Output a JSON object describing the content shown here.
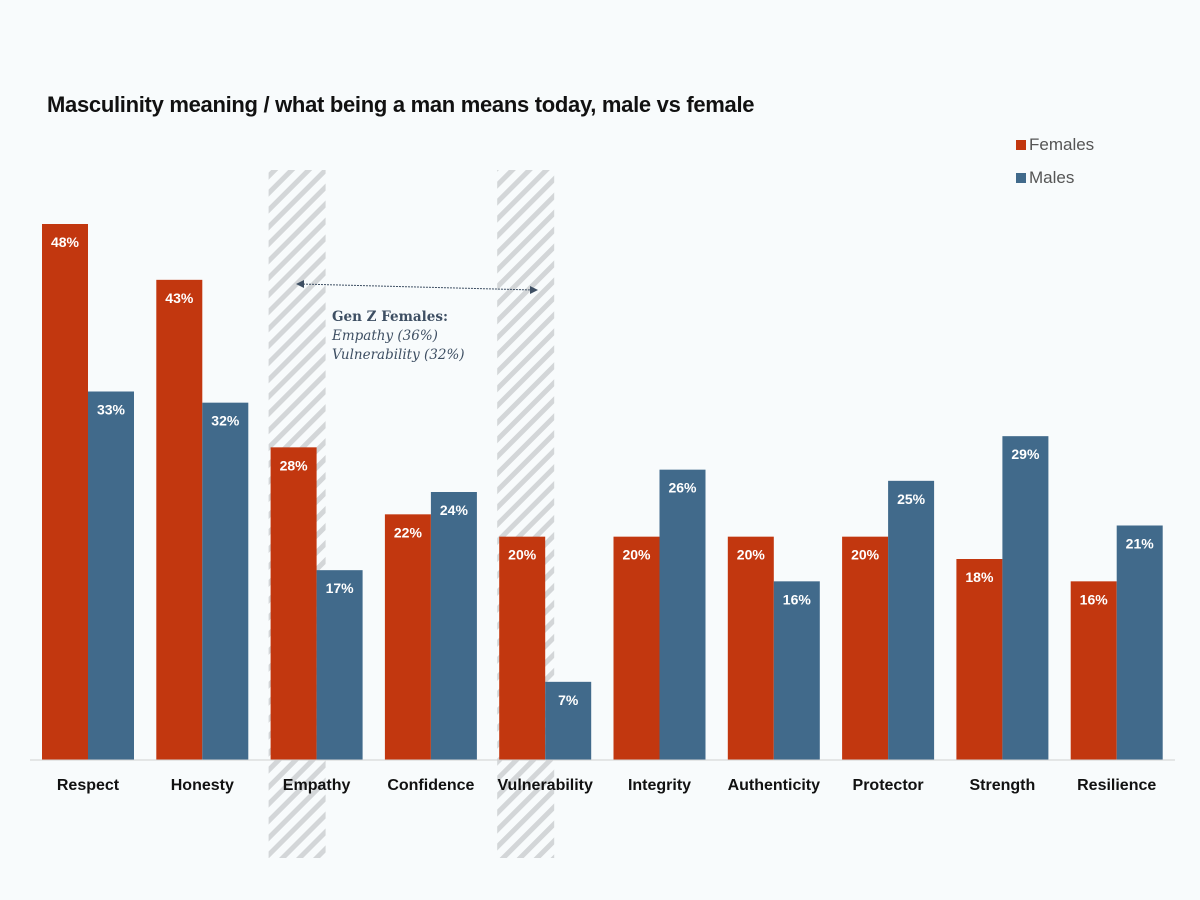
{
  "title": "Masculinity meaning / what being a man means today, male vs female",
  "legend": [
    {
      "label": "Females",
      "color": "#c2370f"
    },
    {
      "label": "Males",
      "color": "#416a8b"
    }
  ],
  "annotation": {
    "heading": "Gen Z Females:",
    "lines": [
      "Empathy (36%)",
      "Vulnerability (32%)"
    ],
    "highlighted_categories": [
      "Empathy",
      "Vulnerability"
    ]
  },
  "chart_data": {
    "type": "bar",
    "title": "Masculinity meaning / what being a man means today, male vs female",
    "xlabel": "",
    "ylabel": "",
    "ylim": [
      0,
      50
    ],
    "grid": false,
    "legend_position": "top-right",
    "value_format": "percent",
    "categories": [
      "Respect",
      "Honesty",
      "Empathy",
      "Confidence",
      "Vulnerability",
      "Integrity",
      "Authenticity",
      "Protector",
      "Strength",
      "Resilience"
    ],
    "series": [
      {
        "name": "Females",
        "color": "#c2370f",
        "values": [
          48,
          43,
          28,
          22,
          20,
          20,
          20,
          20,
          18,
          16
        ]
      },
      {
        "name": "Males",
        "color": "#416a8b",
        "values": [
          33,
          32,
          17,
          24,
          7,
          26,
          16,
          25,
          29,
          21
        ]
      }
    ]
  }
}
